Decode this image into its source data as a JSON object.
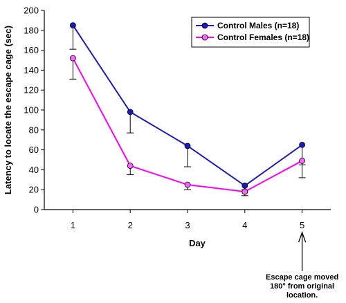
{
  "chart_data": {
    "type": "line",
    "x": [
      1,
      2,
      3,
      4,
      5
    ],
    "xlabel": "Day",
    "ylabel": "Latency to locate the escape cage (sec)",
    "xticks": [
      "1",
      "2",
      "3",
      "4",
      "5"
    ],
    "yticks": [
      "0",
      "20",
      "40",
      "60",
      "80",
      "100",
      "120",
      "140",
      "160",
      "180",
      "200"
    ],
    "ylim": [
      0,
      200
    ],
    "grid": false,
    "legend_position": "top-right",
    "series": [
      {
        "name": "Control Males (n=18)",
        "color": "#1a1abf",
        "marker_fill": "#1a1abf",
        "values": [
          185,
          98,
          64,
          24,
          65
        ],
        "error": [
          24,
          21,
          21,
          4,
          20
        ],
        "error_direction": "down"
      },
      {
        "name": "Control Females (n=18)",
        "color": "#ff00ff",
        "marker_fill": "#ff66ff",
        "values": [
          152,
          44,
          25,
          18,
          49
        ],
        "error": [
          21,
          9,
          5,
          4,
          17
        ],
        "error_direction": "down"
      }
    ],
    "annotation": {
      "lines": [
        "Escape cage moved",
        "180° from original",
        "location."
      ],
      "x": 5
    }
  }
}
